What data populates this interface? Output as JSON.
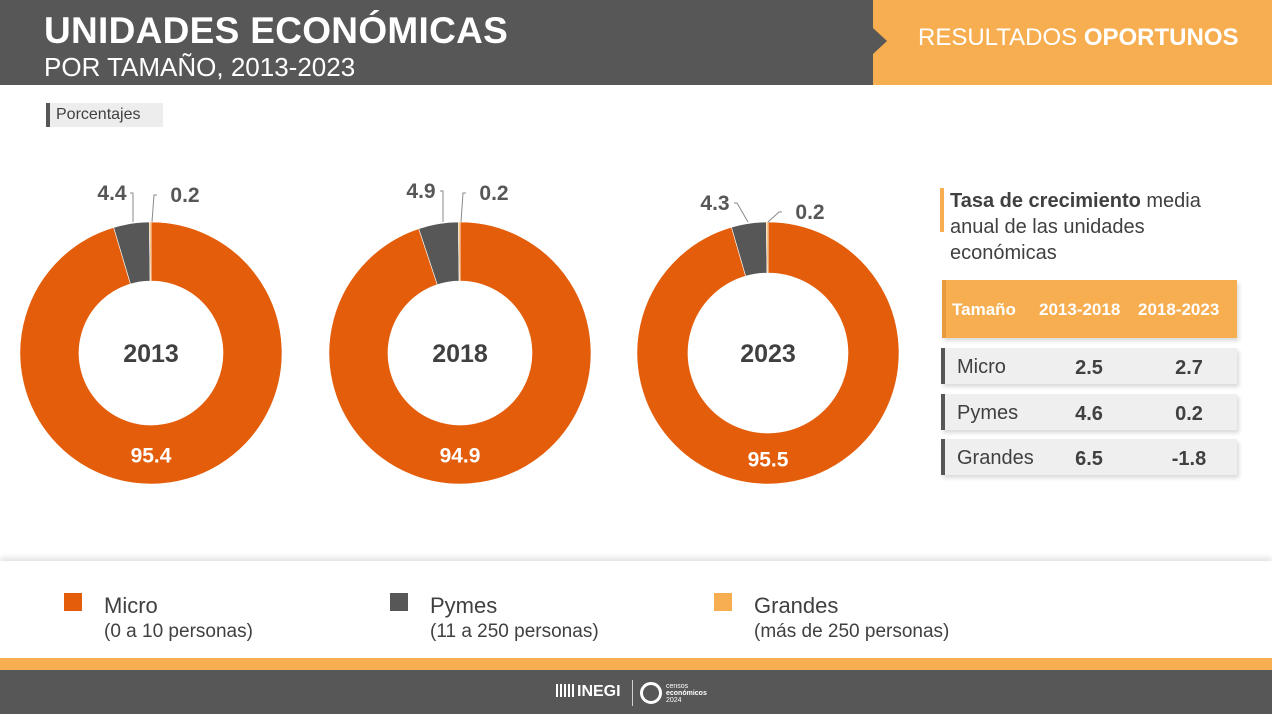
{
  "header": {
    "title": "UNIDADES ECONÓMICAS",
    "subtitle": "POR TAMAÑO, 2013-2023",
    "badge_regular": "RESULTADOS ",
    "badge_bold": "OPORTUNOS"
  },
  "unit_label": "Porcentajes",
  "colors": {
    "micro": "#e35d0b",
    "pymes": "#575757",
    "grandes": "#f7ae51",
    "header_dark": "#575757",
    "header_accent": "#f7ae51"
  },
  "chart_data": [
    {
      "type": "pie",
      "title": "2013",
      "categories": [
        "Micro",
        "Pymes",
        "Grandes"
      ],
      "values": [
        95.4,
        4.4,
        0.2
      ]
    },
    {
      "type": "pie",
      "title": "2018",
      "categories": [
        "Micro",
        "Pymes",
        "Grandes"
      ],
      "values": [
        94.9,
        4.9,
        0.2
      ]
    },
    {
      "type": "pie",
      "title": "2023",
      "categories": [
        "Micro",
        "Pymes",
        "Grandes"
      ],
      "values": [
        95.5,
        4.3,
        0.2
      ]
    }
  ],
  "growth": {
    "title_bold": "Tasa de crecimiento",
    "title_rest": " media anual de las unidades económicas",
    "headers": [
      "Tamaño",
      "2013-2018",
      "2018-2023"
    ],
    "rows": [
      {
        "name": "Micro",
        "v1": "2.5",
        "v2": "2.7"
      },
      {
        "name": "Pymes",
        "v1": "4.6",
        "v2": "0.2"
      },
      {
        "name": "Grandes",
        "v1": "6.5",
        "v2": "-1.8"
      }
    ]
  },
  "legend": [
    {
      "name": "Micro",
      "desc": "(0 a 10 personas)",
      "color": "#e35d0b"
    },
    {
      "name": "Pymes",
      "desc": "(11 a 250 personas)",
      "color": "#575757"
    },
    {
      "name": "Grandes",
      "desc": "(más de 250 personas)",
      "color": "#f7ae51"
    }
  ],
  "footer": {
    "inegi": "INEGI",
    "censos_line1": "censos",
    "censos_line2": "económicos",
    "censos_line3": "2024"
  }
}
